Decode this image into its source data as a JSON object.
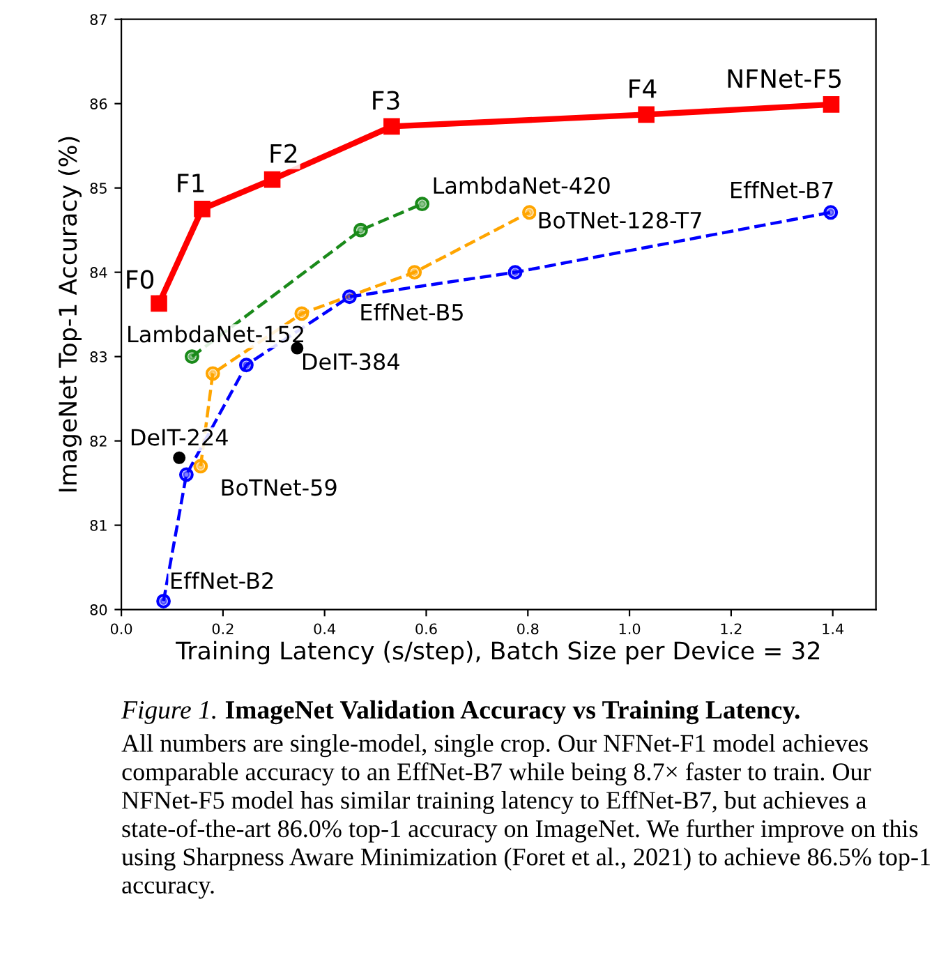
{
  "chart_data": {
    "type": "line",
    "xlabel": "Training Latency (s/step), Batch Size per Device = 32",
    "ylabel": "ImageNet Top-1 Accuracy (%)",
    "xlim": [
      0,
      1.485
    ],
    "ylim": [
      80,
      87
    ],
    "xticks": [
      {
        "value": 0.0,
        "label": "0.0"
      },
      0.2,
      0.4,
      0.6,
      0.8,
      {
        "value": 1.0,
        "label": "1.0"
      },
      1.2,
      1.4
    ],
    "yticks": [
      80,
      81,
      82,
      83,
      84,
      85,
      86,
      87
    ],
    "grid": false,
    "legend": false,
    "series": [
      {
        "color": "#ff0000",
        "marker": "square",
        "line_style": "solid",
        "x": [
          0.074,
          0.159,
          0.297,
          0.532,
          1.033,
          1.397
        ],
        "values": [
          83.63,
          84.75,
          85.1,
          85.73,
          85.87,
          85.99
        ]
      },
      {
        "color": "#1a8a1a",
        "marker": "circle",
        "line_style": "dashed",
        "x": [
          0.139,
          0.471,
          0.592
        ],
        "values": [
          83.0,
          84.5,
          84.81
        ]
      },
      {
        "color": "#ffa500",
        "marker": "circle",
        "line_style": "dashed",
        "x": [
          0.156,
          0.18,
          0.355,
          0.577,
          0.803
        ],
        "values": [
          81.7,
          82.8,
          83.51,
          84.0,
          84.71
        ]
      },
      {
        "color": "#0000ff",
        "marker": "circle",
        "line_style": "dashed",
        "x": [
          0.083,
          0.128,
          0.246,
          0.449,
          0.775,
          1.396
        ],
        "values": [
          80.1,
          81.6,
          82.9,
          83.71,
          84.0,
          84.71
        ]
      },
      {
        "type": "scatter",
        "color": "#000000",
        "marker": "circle",
        "x": [
          0.114,
          0.346
        ],
        "values": [
          81.8,
          83.1
        ]
      }
    ],
    "annotations": [
      {
        "text": "F0",
        "x": 0.074,
        "y": 83.63
      },
      {
        "text": "F1",
        "x": 0.159,
        "y": 84.75
      },
      {
        "text": "F2",
        "x": 0.297,
        "y": 85.1
      },
      {
        "text": "F3",
        "x": 0.532,
        "y": 85.73
      },
      {
        "text": "F4",
        "x": 1.033,
        "y": 85.87
      },
      {
        "text": "NFNet-F5",
        "x": 1.397,
        "y": 85.99
      },
      {
        "text": "LambdaNet-420",
        "x": 0.592,
        "y": 84.81
      },
      {
        "text": "LambdaNet-152",
        "x": 0.139,
        "y": 83.0
      },
      {
        "text": "BoTNet-128-T7",
        "x": 0.803,
        "y": 84.71
      },
      {
        "text": "BoTNet-59",
        "x": 0.156,
        "y": 81.7
      },
      {
        "text": "EffNet-B7",
        "x": 1.396,
        "y": 84.71
      },
      {
        "text": "EffNet-B5",
        "x": 0.449,
        "y": 83.71
      },
      {
        "text": "EffNet-B2",
        "x": 0.083,
        "y": 80.1
      },
      {
        "text": "DeIT-224",
        "x": 0.114,
        "y": 81.8
      },
      {
        "text": "DeIT-384",
        "x": 0.346,
        "y": 83.1
      },
      "Figure 1.",
      "ImageNet Validation Accuracy vs Training Latency.",
      "All numbers are single-model, single crop. Our NFNet-F1 model achieves comparable accuracy to an EffNet-B7 while being 8.7× faster to train. Our NFNet-F5 model has similar training latency to EffNet-B7, but achieves a state-of-the-art 86.0% top-1 accuracy on ImageNet. We further improve on this using Sharpness Aware Minimization (Foret et al., 2021) to achieve 86.5% top-1 accuracy."
    ]
  }
}
